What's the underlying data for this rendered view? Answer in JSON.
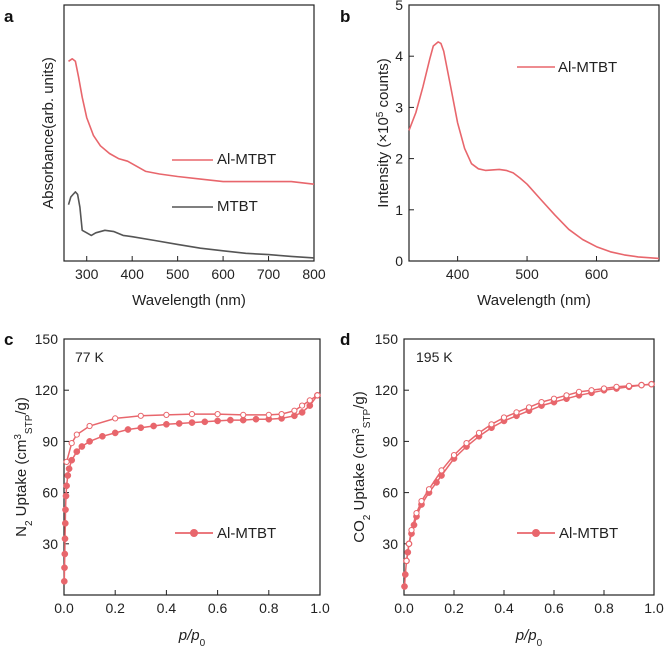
{
  "colors": {
    "al_mtbt": "#E8666C",
    "mtbt": "#555555",
    "axis": "#222222"
  },
  "chart_data": [
    {
      "panel": "a",
      "type": "line",
      "title": "",
      "xlabel": "Wavelength (nm)",
      "ylabel": "Absorbance(arb. units)",
      "xlim": [
        250,
        800
      ],
      "ylim": [
        0,
        100
      ],
      "xticks": [
        300,
        400,
        500,
        600,
        700,
        800
      ],
      "yticks": [],
      "legend": "inline",
      "series": [
        {
          "name": "Al-MTBT",
          "color": "#E8666C",
          "x": [
            260,
            268,
            275,
            282,
            290,
            300,
            315,
            330,
            350,
            370,
            390,
            410,
            430,
            460,
            500,
            550,
            600,
            650,
            700,
            750,
            800
          ],
          "y": [
            78,
            79,
            78,
            72,
            64,
            56,
            49,
            45,
            42,
            40,
            39,
            37,
            35,
            34,
            33,
            32,
            31,
            31,
            31,
            31,
            30
          ]
        },
        {
          "name": "MTBT",
          "color": "#555555",
          "x": [
            260,
            265,
            270,
            275,
            280,
            285,
            290,
            300,
            310,
            320,
            340,
            360,
            380,
            400,
            450,
            500,
            550,
            600,
            650,
            700,
            750,
            800
          ],
          "y": [
            22,
            25,
            26,
            27,
            26,
            21,
            12,
            11,
            10,
            11,
            12,
            11.5,
            10,
            9.5,
            8,
            6.5,
            5,
            4,
            3,
            2.5,
            1.8,
            1.2
          ]
        }
      ]
    },
    {
      "panel": "b",
      "type": "line",
      "title": "",
      "xlabel": "Wavelength (nm)",
      "ylabel": "Intensity (×10",
      "ylabel_sup": "5",
      "ylabel_end": " counts)",
      "xlim": [
        330,
        690
      ],
      "ylim": [
        0,
        5
      ],
      "xticks": [
        400,
        500,
        600
      ],
      "yticks": [
        0,
        1,
        2,
        3,
        4,
        5
      ],
      "legend": "top-right",
      "series": [
        {
          "name": "Al-MTBT",
          "color": "#E8666C",
          "x": [
            330,
            340,
            350,
            360,
            365,
            372,
            376,
            380,
            390,
            400,
            410,
            420,
            430,
            440,
            450,
            460,
            470,
            480,
            490,
            500,
            520,
            540,
            560,
            580,
            600,
            620,
            640,
            660,
            690
          ],
          "y": [
            2.55,
            2.9,
            3.4,
            3.95,
            4.2,
            4.28,
            4.25,
            4.1,
            3.4,
            2.7,
            2.2,
            1.9,
            1.8,
            1.77,
            1.78,
            1.79,
            1.77,
            1.72,
            1.62,
            1.5,
            1.2,
            0.9,
            0.62,
            0.42,
            0.28,
            0.18,
            0.12,
            0.08,
            0.05
          ]
        }
      ]
    },
    {
      "panel": "c",
      "type": "scatter",
      "title": "",
      "annotation": "77 K",
      "xlabel": "p/p0",
      "xlabel_italic": "p/p",
      "xlabel_sub": "0",
      "ylabel_pre": "N",
      "ylabel_sub1": "2",
      "ylabel_mid": " Uptake (cm",
      "ylabel_sup": "3",
      "ylabel_sub2": "STP",
      "ylabel_end": "/g)",
      "xlim": [
        0,
        1.0
      ],
      "ylim": [
        0,
        150
      ],
      "xticks": [
        0.0,
        0.2,
        0.4,
        0.6,
        0.8,
        1.0
      ],
      "yticks": [
        30,
        60,
        90,
        120,
        150
      ],
      "legend": "bottom-right",
      "series": [
        {
          "name": "Al-MTBT",
          "style": "filled",
          "color": "#E8666C",
          "x": [
            0.001,
            0.002,
            0.003,
            0.004,
            0.005,
            0.006,
            0.008,
            0.01,
            0.015,
            0.02,
            0.03,
            0.05,
            0.07,
            0.1,
            0.15,
            0.2,
            0.25,
            0.3,
            0.35,
            0.4,
            0.45,
            0.5,
            0.55,
            0.6,
            0.65,
            0.7,
            0.75,
            0.8,
            0.85,
            0.9,
            0.93,
            0.96,
            0.99
          ],
          "y": [
            8,
            16,
            24,
            33,
            42,
            50,
            58,
            64,
            70,
            74,
            79,
            84,
            87,
            90,
            93,
            95,
            97,
            98,
            99,
            100,
            100.5,
            101,
            101.5,
            102,
            102.5,
            102.5,
            103,
            103,
            103.5,
            105,
            107,
            111,
            117
          ]
        },
        {
          "name": "desorption",
          "style": "open",
          "color": "#E8666C",
          "x": [
            0.99,
            0.96,
            0.93,
            0.9,
            0.85,
            0.8,
            0.7,
            0.6,
            0.5,
            0.4,
            0.3,
            0.2,
            0.1,
            0.05,
            0.03,
            0.01
          ],
          "y": [
            117,
            114,
            111,
            108,
            106,
            105.5,
            105.5,
            106,
            106,
            105.5,
            105,
            103.5,
            99,
            94,
            89,
            78
          ]
        }
      ]
    },
    {
      "panel": "d",
      "type": "scatter",
      "title": "",
      "annotation": "195 K",
      "xlabel": "p/p0",
      "xlabel_italic": "p/p",
      "xlabel_sub": "0",
      "ylabel_pre": "CO",
      "ylabel_sub1": "2",
      "ylabel_mid": " Uptake (cm",
      "ylabel_sup": "3",
      "ylabel_sub2": "STP",
      "ylabel_end": "/g)",
      "xlim": [
        0,
        1.0
      ],
      "ylim": [
        0,
        150
      ],
      "xticks": [
        0.0,
        0.2,
        0.4,
        0.6,
        0.8,
        1.0
      ],
      "yticks": [
        30,
        60,
        90,
        120,
        150
      ],
      "legend": "bottom-right",
      "series": [
        {
          "name": "Al-MTBT",
          "style": "filled",
          "color": "#E8666C",
          "x": [
            0.002,
            0.005,
            0.01,
            0.015,
            0.02,
            0.03,
            0.04,
            0.05,
            0.07,
            0.1,
            0.13,
            0.15,
            0.2,
            0.25,
            0.3,
            0.35,
            0.4,
            0.45,
            0.5,
            0.55,
            0.6,
            0.65,
            0.7,
            0.75,
            0.8,
            0.85,
            0.9,
            0.95,
            0.99
          ],
          "y": [
            5,
            12,
            20,
            25,
            30,
            36,
            41,
            46,
            53,
            60,
            66,
            70,
            80,
            87,
            93,
            98,
            102,
            105,
            108,
            111,
            113,
            115,
            117,
            118.5,
            120,
            121,
            122,
            123,
            123.5
          ]
        },
        {
          "name": "desorption",
          "style": "open",
          "color": "#E8666C",
          "x": [
            0.99,
            0.95,
            0.9,
            0.85,
            0.8,
            0.75,
            0.7,
            0.65,
            0.6,
            0.55,
            0.5,
            0.45,
            0.4,
            0.35,
            0.3,
            0.25,
            0.2,
            0.15,
            0.1,
            0.07,
            0.05,
            0.03,
            0.02,
            0.01
          ],
          "y": [
            123.5,
            123,
            122.5,
            122,
            121,
            120,
            119,
            117,
            115,
            113,
            110,
            107,
            104,
            100,
            95,
            89,
            82,
            73,
            62,
            55,
            48,
            38,
            30,
            20
          ]
        }
      ]
    }
  ]
}
